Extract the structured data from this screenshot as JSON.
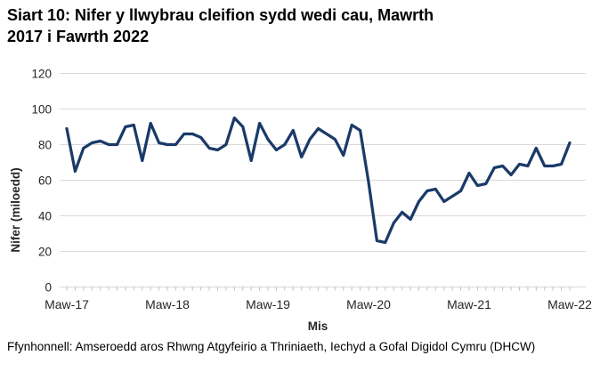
{
  "page": {
    "title": "Siart 10: Nifer y llwybrau cleifion sydd wedi cau, Mawrth 2017 i Fawrth 2022",
    "source": "Ffynhonnell: Amseroedd aros Rhwng Atgyfeirio a Thriniaeth, Iechyd a Gofal Digidol Cymru (DHCW)"
  },
  "chart_data": {
    "type": "line",
    "title": "Siart 10: Nifer y llwybrau cleifion sydd wedi cau, Mawrth 2017 i Fawrth 2022",
    "xlabel": "Mis",
    "ylabel": "Nifer (miloedd)",
    "ylim": [
      0,
      120
    ],
    "yticks": [
      0,
      20,
      40,
      60,
      80,
      100,
      120
    ],
    "grid": "horizontal",
    "legend": "none",
    "x_unit": "month",
    "x_start": "Mawrth 2017",
    "x_end": "Mawrth 2022",
    "n_points": 61,
    "x_tick_labels": [
      "Maw-17",
      "Maw-18",
      "Maw-19",
      "Maw-20",
      "Maw-21",
      "Maw-22"
    ],
    "x_tick_indices": [
      0,
      12,
      24,
      36,
      48,
      60
    ],
    "values": [
      89,
      65,
      78,
      81,
      82,
      80,
      80,
      90,
      91,
      71,
      92,
      81,
      80,
      80,
      86,
      86,
      84,
      78,
      77,
      80,
      95,
      90,
      71,
      92,
      83,
      77,
      80,
      88,
      73,
      83,
      89,
      86,
      83,
      74,
      91,
      88,
      59,
      26,
      25,
      36,
      42,
      38,
      48,
      54,
      55,
      48,
      51,
      54,
      64,
      57,
      58,
      67,
      68,
      63,
      69,
      68,
      78,
      68,
      68,
      69,
      81
    ],
    "colors": {
      "line": "#1A3A68",
      "gridline": "#D9D9D9",
      "axis_tick": "#BFBFBF",
      "tick_text": "#262626",
      "title_text": "#000000"
    }
  }
}
